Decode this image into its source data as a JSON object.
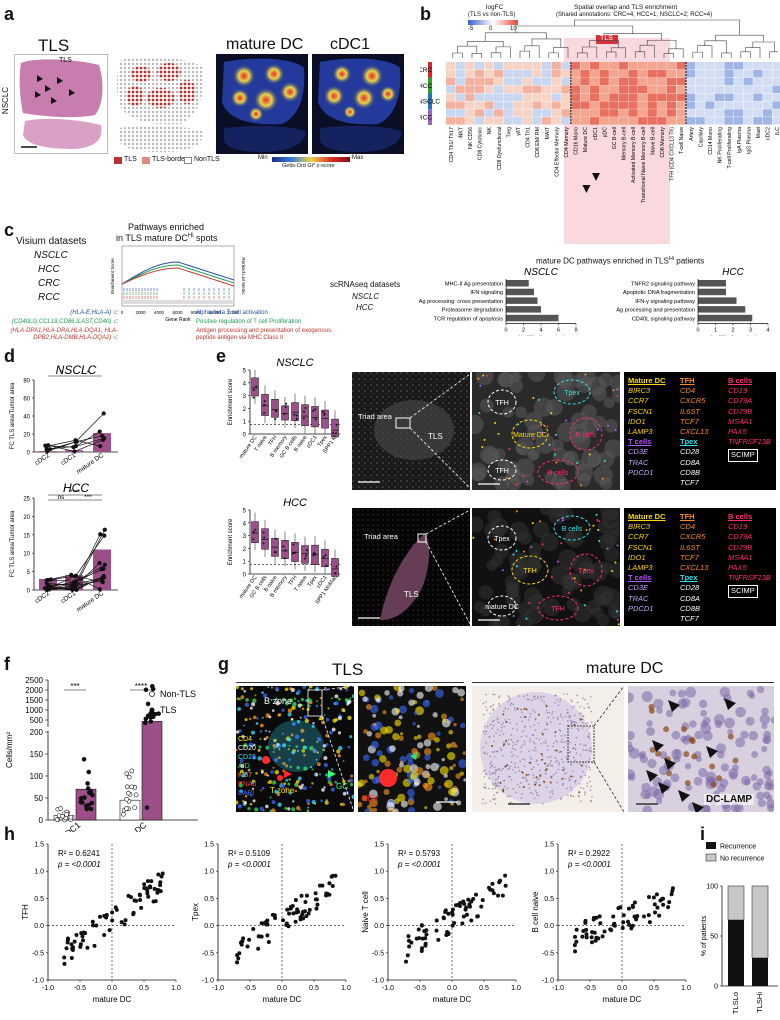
{
  "panels": {
    "a": {
      "label": "a",
      "title_tls": "TLS",
      "title_mdc": "mature DC",
      "title_cdc1": "cDC1",
      "side_label": "NSCLC",
      "inset_label": "TLS",
      "legend": [
        "TLS",
        "TLS-border",
        "NonTLS"
      ],
      "colorbar": {
        "min": "Min",
        "max": "Max",
        "caption": "Getis-Ord Gi* z-score"
      }
    },
    "b": {
      "label": "b",
      "scale_title": "logFC",
      "scale_subtitle": "(TLS vs non-TLS)",
      "scale_ticks": [
        "-5",
        "0",
        "10"
      ],
      "title_line1": "Spatial overlap and TLS enrichment",
      "title_line2": "(Shared annotations: CRC=4; HCC=1; NSCLC=2; RCC=4)",
      "tls_tag": "TLS",
      "rows": [
        "CRC",
        "HCC",
        "NSCLC",
        "RCC"
      ],
      "row_colors": [
        "#d62728",
        "#2ca02c",
        "#1f77b4",
        "#9467bd"
      ],
      "columns": [
        "CD4 Th1/ Th17",
        "iNKT",
        "NK CD56",
        "CD8 Cytotoxic",
        "NK",
        "CD8 Dysfunctional",
        "Treg",
        "γδT",
        "CD4 Th1",
        "CD8 EM/ RM",
        "MAIT",
        "CD4 Effector Memory",
        "CD4 Memory",
        "CD16 Mono",
        "Mature DC",
        "cDC1",
        "pDC",
        "GC B-cell",
        "Memory B-cell",
        "Activated Memory B-cell",
        "Transitional Naive Memory B-cell",
        "Naive B-cell",
        "CD8 Memory",
        "TFH (CD4 CXCL13 Th)",
        "T-cell Naive",
        "Artery",
        "Capillary",
        "CD14 Mono",
        "NK Proliferating",
        "T-cell Proliferating",
        "IgA Plasma",
        "IgG Plasma",
        "Mast",
        "cDC2",
        "ILC"
      ]
    },
    "c": {
      "label": "c",
      "visium_title": "Visium datasets",
      "visium_sets": [
        "NSCLC",
        "HCC",
        "CRC",
        "RCC"
      ],
      "gsea_title_line1": "Pathways enriched",
      "gsea_title_line2": "in TLS mature DC",
      "gsea_title_sup": "Hi",
      "gsea_title_end": "spots",
      "gsea_ylabel": "Enrichment Score",
      "gsea_xlabel": "Gene Rank",
      "gsea_right_label": "Ranked List Metric",
      "gsea_xticks": [
        "0",
        "2000",
        "4000",
        "6000",
        "8000",
        "10000",
        "12000"
      ],
      "gene_sets": [
        {
          "genes": "(HLA-E,HLA-A) ⊂",
          "pathway": "Alpha-beta T cell activation",
          "color": "#1f4fa8"
        },
        {
          "genes": "(CD40LG,CCL19,CD86,ILAST,CD40) ⊂",
          "pathway": "Positive regulation of T cell Proliferation",
          "color": "#1f9a55"
        },
        {
          "genes": "(HLA-DPA1,HLA-DRA,HLA-DQA1, HLA-DPB2,HLA-DMB,HLA-DQA2) ⊂",
          "pathway": "Antigen processing and presentation of exogenous peptide antigen via MHC Class II",
          "color": "#c0392b"
        }
      ],
      "sc_title": "scRNAseq datasets",
      "sc_sets": [
        "NSCLC",
        "HCC"
      ],
      "bars_title": "mature DC pathways enriched in TLS",
      "bars_title_sup": "Hi",
      "bars_title_end": "patients"
    },
    "d": {
      "label": "d",
      "nsclc_title": "NSCLC",
      "hcc_title": "HCC",
      "ylabel": "FC TLS area/Tumor area",
      "categories": [
        "cDC2",
        "cDC1",
        "mature DC"
      ],
      "nsclc_yticks": [
        "0",
        "20",
        "40",
        "60",
        "80"
      ],
      "hcc_yticks": [
        "0",
        "5",
        "10",
        "15",
        "20",
        "25"
      ],
      "nsclc_sig": [
        "*",
        "*"
      ],
      "hcc_sig": [
        "ns",
        "***",
        "****"
      ]
    },
    "e": {
      "label": "e",
      "nsclc_title": "NSCLC",
      "hcc_title": "HCC",
      "ylabel": "Enrichment score",
      "nsclc_yticks": [
        "0",
        "1",
        "2",
        "3",
        "4",
        "5"
      ],
      "hcc_yticks": [
        "0",
        "1",
        "2",
        "3",
        "4",
        "5"
      ],
      "nsclc_categories": [
        "mature DC",
        "T naive",
        "TFH",
        "B memory",
        "GC B cells",
        "B naive",
        "cDC1",
        "Tpex",
        "SPP1 M"
      ],
      "hcc_categories": [
        "mature DC",
        "GC B cells",
        "B naive",
        "B memory",
        "TFH",
        "T naive",
        "Tpex",
        "cDC1",
        "SPP1 MoMac"
      ],
      "triad_label": "Triad area",
      "tls_label": "TLS",
      "zoom_labels_nsclc": [
        "TFH",
        "Tpex",
        "Mature DC",
        "B cells",
        "TFH",
        "B cells"
      ],
      "zoom_labels_hcc": [
        "Tpex",
        "B cells",
        "TFH",
        "Tpex",
        "mature DC",
        "TFH"
      ],
      "legend_cols": [
        {
          "header": "Mature DC",
          "color": "#ffd800",
          "genes": [
            "BIRC3",
            "CCR7",
            "FSCN1",
            "IDO1",
            "LAMP3"
          ]
        },
        {
          "header": "TFH",
          "color": "#ff8c1a",
          "genes": [
            "CD4",
            "CXCR5",
            "IL6ST",
            "TCF7",
            "CXCL13"
          ]
        },
        {
          "header": "B cells",
          "color": "#ff2d6b",
          "genes": [
            "CD19",
            "CD79A",
            "CD79B",
            "MS4A1",
            "PAX5",
            "TNFRSF13B"
          ]
        }
      ],
      "legend_cols2": [
        {
          "header": "T cells",
          "color": "#b45cff",
          "genes": [
            "CD3E",
            "TRAC",
            "PDCD1"
          ]
        },
        {
          "header": "Tpex",
          "color": "#34e0e8",
          "genes": [
            "CD28",
            "CD8A",
            "CD8B",
            "TCF7"
          ]
        }
      ],
      "legend_extra": "SCIMP"
    },
    "f": {
      "label": "f",
      "ylabel": "Cells/mm²",
      "yticks": [
        "0",
        "50",
        "100",
        "150",
        "200",
        "500",
        "1000",
        "1500",
        "2000",
        "2500"
      ],
      "categories": [
        "cDC1",
        "mature DC"
      ],
      "legend": [
        "Non-TLS",
        "TLS"
      ],
      "sig": [
        "***",
        "****"
      ]
    },
    "g": {
      "label": "g",
      "title_tls": "TLS",
      "title_mdc": "mature DC",
      "zone_b": "B zone",
      "zone_t": "T zone",
      "gc": "GC",
      "hev": "HEV",
      "channels": [
        {
          "name": "CD4",
          "color": "#ffe600"
        },
        {
          "name": "CD20",
          "color": "#ffffff"
        },
        {
          "name": "CD21",
          "color": "#3de0ff"
        },
        {
          "name": "AID",
          "color": "#37e05b"
        },
        {
          "name": "Ki67",
          "color": "#ff9a1a"
        },
        {
          "name": "PNAd",
          "color": "#ff2a2a"
        },
        {
          "name": "DAPI",
          "color": "#3b6bff"
        }
      ],
      "dclamp": "DC-LAMP"
    },
    "h": {
      "label": "h",
      "xlabel": "mature DC",
      "xticks": [
        "-1.0",
        "-0.5",
        "0.0",
        "0.5",
        "1.0"
      ],
      "yticks": [
        "-1.0",
        "-0.5",
        "0.0",
        "0.5",
        "1.0",
        "1.5"
      ],
      "plots": [
        {
          "ylabel": "TFH",
          "r2": "R² = 0.6241",
          "p": "p = <0.0001"
        },
        {
          "ylabel": "Tpex",
          "r2": "R² = 0.5109",
          "p": "p = <0.0001"
        },
        {
          "ylabel": "Naive T cell",
          "r2": "R² = 0.5793",
          "p": "p = <0.0001"
        },
        {
          "ylabel": "B cell naive",
          "r2": "R² = 0.2922",
          "p": "p = <0.0001"
        }
      ]
    },
    "i": {
      "label": "i",
      "ylabel": "% of patients",
      "yticks": [
        "0",
        "50",
        "100"
      ],
      "legend": [
        "Recurrence",
        "No recurrence"
      ],
      "categories": [
        "TLSLo",
        "TLSHi"
      ]
    }
  },
  "chart_data": [
    {
      "type": "bar",
      "title": "NSCLC",
      "xlabel": "-log10(adj. p-value)",
      "categories": [
        "MHC-II Ag presentation",
        "IFN signaling",
        "Ag processing: cross presentation",
        "Proteasome degradation",
        "TCR regulation of apoptosis"
      ],
      "values": [
        2.6,
        3.2,
        3.6,
        4.0,
        6.0
      ],
      "xlim": [
        0,
        8
      ],
      "xticks": [
        0,
        2,
        4,
        6,
        8
      ],
      "color": "#555555"
    },
    {
      "type": "bar",
      "title": "HCC",
      "xlabel": "-log10(adj. p-value)",
      "categories": [
        "TNFR2 signaling pathway",
        "Apoptotic DNA fragmentation",
        "IFN-γ signaling pathway",
        "Ag processing and presentation",
        "CD40L signaling pathway"
      ],
      "values": [
        1.6,
        1.6,
        2.2,
        2.7,
        3.1
      ],
      "xlim": [
        0,
        4
      ],
      "xticks": [
        0,
        1,
        2,
        3,
        4
      ],
      "color": "#555555"
    },
    {
      "type": "bar",
      "title": "",
      "ylabel": "% of patients",
      "categories": [
        "TLSLo",
        "TLSHi"
      ],
      "series": [
        {
          "name": "Recurrence",
          "values": [
            66,
            28
          ]
        },
        {
          "name": "No recurrence",
          "values": [
            34,
            72
          ]
        }
      ],
      "ylim": [
        0,
        100
      ]
    }
  ]
}
